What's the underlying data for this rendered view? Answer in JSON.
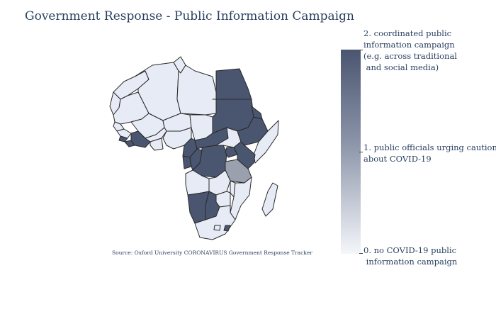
{
  "title": "Government Response - Public Information Campaign",
  "source": "Source:  Oxford University CORONAVIRUS Government Response Tracker",
  "colors": {
    "level_0": "#e6ebf5",
    "level_1": "#9aa0ad",
    "level_2": "#4a5570",
    "border": "#2a2a2a"
  },
  "colorbar": {
    "min": 0,
    "max": 2,
    "ticks": [
      {
        "value": 2,
        "label": "2. coordinated public\ninformation campaign\n(e.g. across traditional\n and social media)"
      },
      {
        "value": 1,
        "label": "1. public officials urging caution\nabout COVID-19"
      },
      {
        "value": 0,
        "label": "0. no COVID-19 public\n information campaign"
      }
    ]
  },
  "chart_data": {
    "type": "choropleth",
    "region": "Africa",
    "z_range": [
      0,
      2
    ],
    "countries": [
      {
        "name": "Morocco",
        "value": 0
      },
      {
        "name": "Western Sahara",
        "value": 0
      },
      {
        "name": "Algeria",
        "value": 0
      },
      {
        "name": "Tunisia",
        "value": 0
      },
      {
        "name": "Libya",
        "value": 0
      },
      {
        "name": "Egypt",
        "value": 2
      },
      {
        "name": "Mauritania",
        "value": 0
      },
      {
        "name": "Mali",
        "value": 0
      },
      {
        "name": "Niger",
        "value": 0
      },
      {
        "name": "Chad",
        "value": 0
      },
      {
        "name": "Sudan",
        "value": 2
      },
      {
        "name": "Senegal",
        "value": 0
      },
      {
        "name": "Guinea",
        "value": 0
      },
      {
        "name": "Sierra Leone",
        "value": 2
      },
      {
        "name": "Liberia",
        "value": 2
      },
      {
        "name": "Cote d'Ivoire",
        "value": 2
      },
      {
        "name": "Burkina Faso",
        "value": 0
      },
      {
        "name": "Ghana",
        "value": 0
      },
      {
        "name": "Nigeria",
        "value": 0
      },
      {
        "name": "Cameroon",
        "value": 2
      },
      {
        "name": "Central African Republic",
        "value": 2
      },
      {
        "name": "South Sudan",
        "value": 0
      },
      {
        "name": "Ethiopia",
        "value": 2
      },
      {
        "name": "Eritrea",
        "value": 2
      },
      {
        "name": "Somalia",
        "value": 0
      },
      {
        "name": "Gabon",
        "value": 2
      },
      {
        "name": "Congo",
        "value": 2
      },
      {
        "name": "DR Congo",
        "value": 2
      },
      {
        "name": "Uganda",
        "value": 2
      },
      {
        "name": "Kenya",
        "value": 2
      },
      {
        "name": "Tanzania",
        "value": 1
      },
      {
        "name": "Angola",
        "value": 0
      },
      {
        "name": "Zambia",
        "value": 0
      },
      {
        "name": "Malawi",
        "value": 0
      },
      {
        "name": "Mozambique",
        "value": 0
      },
      {
        "name": "Zimbabwe",
        "value": 0
      },
      {
        "name": "Namibia",
        "value": 2
      },
      {
        "name": "Botswana",
        "value": 2
      },
      {
        "name": "South Africa",
        "value": 0
      },
      {
        "name": "Eswatini",
        "value": 2
      },
      {
        "name": "Lesotho",
        "value": 0
      },
      {
        "name": "Madagascar",
        "value": 0
      }
    ]
  }
}
